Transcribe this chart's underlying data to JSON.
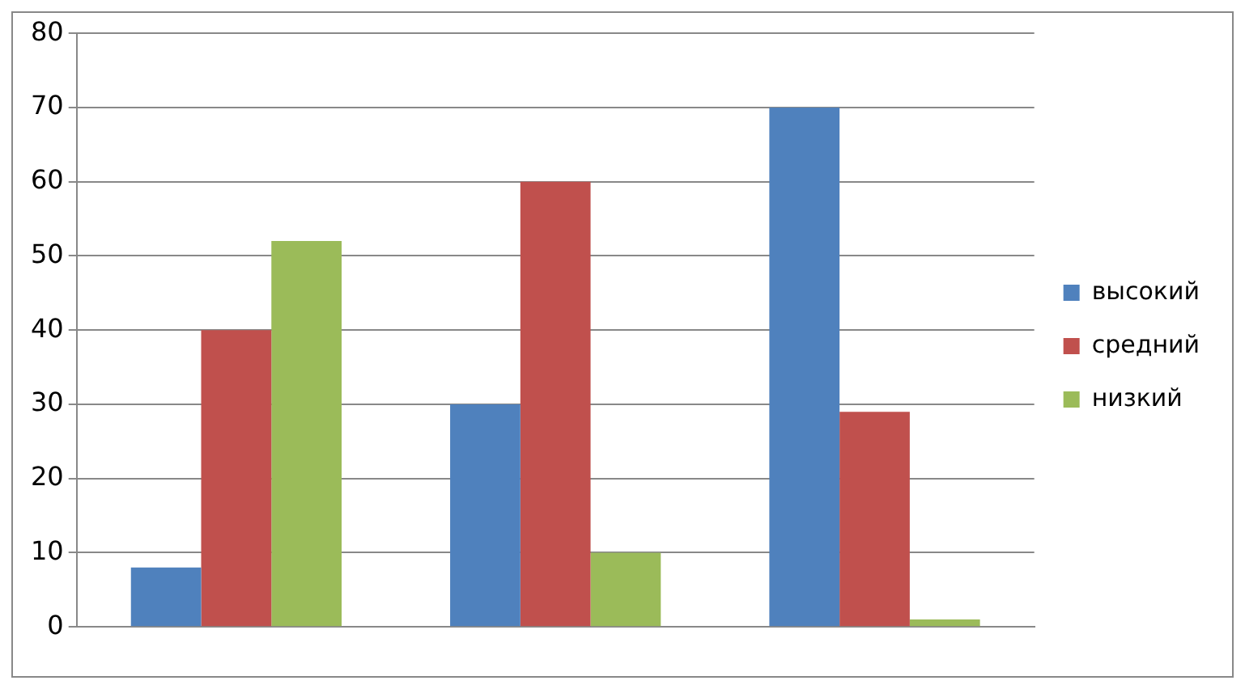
{
  "chart_data": {
    "type": "bar",
    "categories": [
      null,
      null,
      null
    ],
    "series": [
      {
        "name": "высокий",
        "color": "#4f81bd",
        "values": [
          8,
          30,
          70
        ]
      },
      {
        "name": "средний",
        "color": "#c0504d",
        "values": [
          40,
          60,
          29
        ]
      },
      {
        "name": "низкий",
        "color": "#9bbb59",
        "values": [
          52,
          10,
          1
        ]
      }
    ],
    "ylim": [
      0,
      80
    ],
    "yticks": [
      0,
      10,
      20,
      30,
      40,
      50,
      60,
      70,
      80
    ],
    "grid": "y",
    "legend": "right"
  }
}
